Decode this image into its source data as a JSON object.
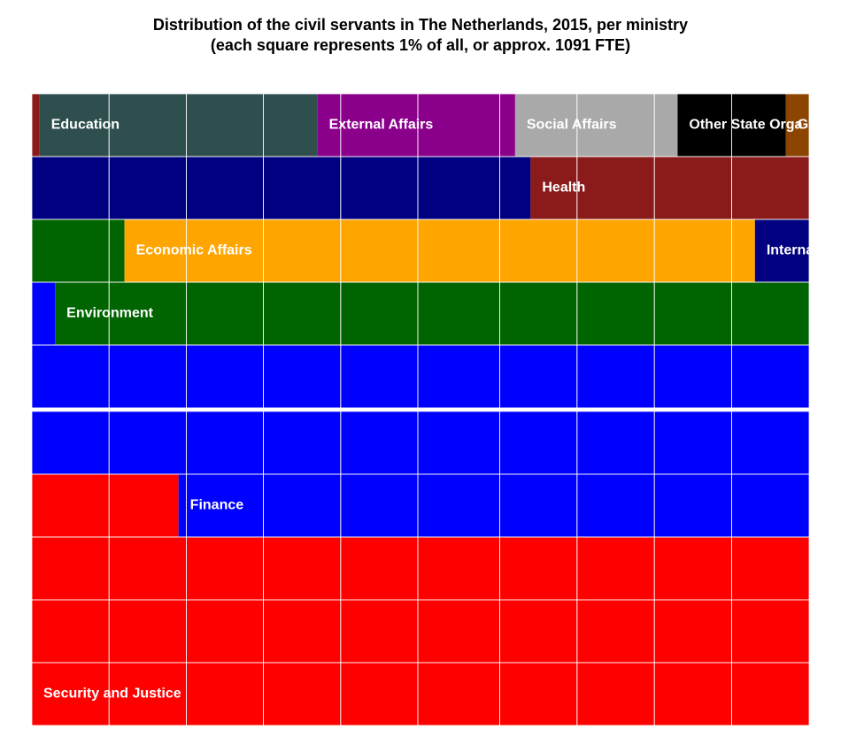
{
  "chart_data": {
    "type": "waffle",
    "title": "Distribution of the civil servants in The Netherlands, 2015, per ministry",
    "subtitle": "(each square represents 1% of all, or approx. 1091 FTE)",
    "categories": [
      "Security and Justice",
      "Finance",
      "Environment",
      "Economic Affairs",
      "Interna",
      "Health",
      "Education",
      "External Affairs",
      "Social Affairs",
      "Other State Orga",
      "G"
    ],
    "values": [
      31.9,
      28.4,
      10.9,
      8.1,
      7.1,
      3.7,
      3.6,
      2.5,
      2.1,
      1.4,
      0.3
    ],
    "colors": [
      "#ff0000",
      "#0000ff",
      "#006400",
      "#ffa500",
      "#000080",
      "#8b1a1a",
      "#2f4f4f",
      "#8b008b",
      "#a9a9a9",
      "#000000",
      "#8b4500"
    ]
  }
}
